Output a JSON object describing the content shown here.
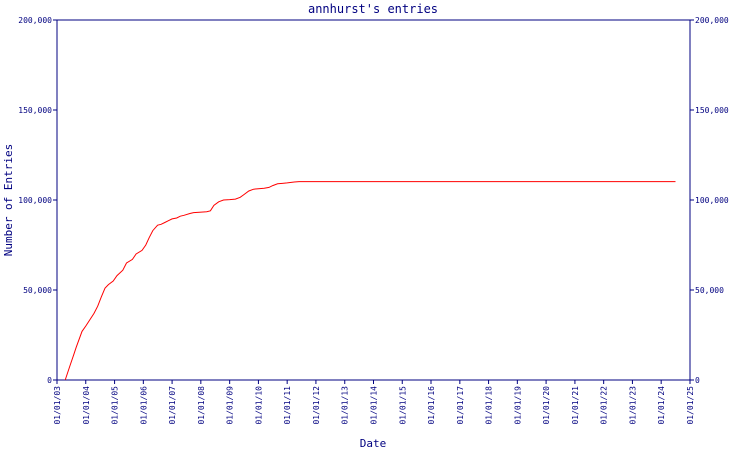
{
  "chart_data": {
    "type": "line",
    "title": "annhurst's entries",
    "xlabel": "Date",
    "ylabel": "Number of Entries",
    "ylim": [
      0,
      200000
    ],
    "y_ticks": [
      0,
      50000,
      100000,
      150000,
      200000
    ],
    "y_tick_labels": [
      "0",
      "50,000",
      "100,000",
      "150,000",
      "200,000"
    ],
    "x_ticks": [
      "2003-01-01",
      "2004-01-01",
      "2005-01-01",
      "2006-01-01",
      "2007-01-01",
      "2008-01-01",
      "2009-01-01",
      "2010-01-01",
      "2011-01-01",
      "2012-01-01",
      "2013-01-01",
      "2014-01-01",
      "2015-01-01",
      "2016-01-01",
      "2017-01-01",
      "2018-01-01",
      "2019-01-01",
      "2020-01-01",
      "2021-01-01",
      "2022-01-01",
      "2023-01-01",
      "2024-01-01",
      "2025-01-01"
    ],
    "x_tick_labels": [
      "01/01/03",
      "01/01/04",
      "01/01/05",
      "01/01/06",
      "01/01/07",
      "01/01/08",
      "01/01/09",
      "01/01/10",
      "01/01/11",
      "01/01/12",
      "01/01/13",
      "01/01/14",
      "01/01/15",
      "01/01/16",
      "01/01/17",
      "01/01/18",
      "01/01/19",
      "01/01/20",
      "01/01/21",
      "01/01/22",
      "01/01/23",
      "01/01/24",
      "01/01/25"
    ],
    "xlim": [
      "2003-01-01",
      "2025-01-01"
    ],
    "grid": false,
    "line_color": "#ff0000",
    "axis_color": "#000080",
    "x": [
      "2003-04-15",
      "2003-06-15",
      "2003-08-01",
      "2003-09-01",
      "2003-11-15",
      "2004-01-01",
      "2004-02-15",
      "2004-04-15",
      "2004-06-01",
      "2004-07-15",
      "2004-09-01",
      "2004-10-15",
      "2004-12-15",
      "2005-02-01",
      "2005-04-15",
      "2005-06-01",
      "2005-08-15",
      "2005-10-01",
      "2005-12-15",
      "2006-02-01",
      "2006-03-15",
      "2006-05-01",
      "2006-07-01",
      "2006-08-15",
      "2006-10-01",
      "2006-11-15",
      "2007-01-01",
      "2007-03-01",
      "2007-04-15",
      "2007-06-01",
      "2007-08-15",
      "2007-10-01",
      "2007-12-15",
      "2008-03-15",
      "2008-05-01",
      "2008-06-15",
      "2008-08-15",
      "2008-10-15",
      "2009-01-01",
      "2009-03-15",
      "2009-05-15",
      "2009-07-01",
      "2009-09-01",
      "2009-11-01",
      "2010-01-01",
      "2010-03-15",
      "2010-05-15",
      "2010-07-01",
      "2010-09-01",
      "2010-11-01",
      "2011-01-01",
      "2011-04-01",
      "2011-06-01",
      "2011-12-01",
      "2013-01-01",
      "2015-01-01",
      "2017-01-01",
      "2019-01-01",
      "2021-01-01",
      "2023-01-01",
      "2024-01-01",
      "2024-07-01"
    ],
    "y": [
      0,
      8000,
      14000,
      18000,
      27000,
      30000,
      33000,
      37000,
      41000,
      46000,
      51000,
      53000,
      55000,
      58000,
      61000,
      65000,
      67000,
      70000,
      72000,
      75000,
      79000,
      83000,
      86000,
      86500,
      87500,
      88500,
      89500,
      90000,
      91000,
      91500,
      92500,
      93000,
      93200,
      93500,
      94000,
      97000,
      99000,
      100000,
      100200,
      100500,
      101500,
      103000,
      105000,
      106000,
      106200,
      106500,
      107000,
      108000,
      109000,
      109200,
      109500,
      110000,
      110200,
      110200,
      110200,
      110200,
      110200,
      110200,
      110200,
      110200,
      110200,
      110200
    ]
  }
}
